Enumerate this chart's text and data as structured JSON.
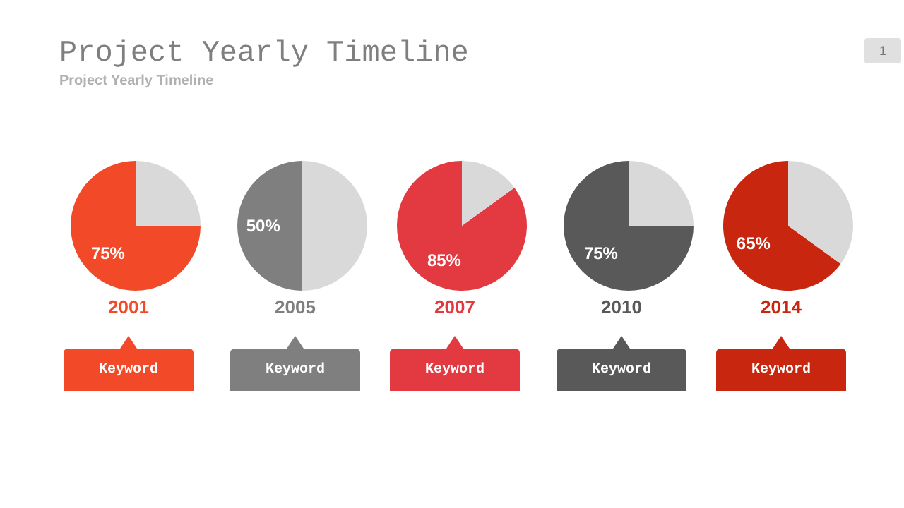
{
  "chart_data": [
    {
      "type": "other",
      "title": "Project Yearly Timeline",
      "subtitle": "Project Yearly Timeline",
      "annotations": [
        "1"
      ]
    },
    {
      "type": "pie",
      "title": "2001",
      "categories": [
        null,
        null
      ],
      "values": [
        75,
        25
      ],
      "colors": [
        "#f24a29",
        "#d9d9d9"
      ],
      "value_labels": [
        "75%",
        null
      ],
      "annotations": [
        "Keyword"
      ]
    },
    {
      "type": "pie",
      "title": "2005",
      "categories": [
        null,
        null
      ],
      "values": [
        50,
        50
      ],
      "colors": [
        "#7f7f7f",
        "#d9d9d9"
      ],
      "value_labels": [
        "50%",
        null
      ],
      "annotations": [
        "Keyword"
      ]
    },
    {
      "type": "pie",
      "title": "2007",
      "categories": [
        null,
        null
      ],
      "values": [
        85,
        15
      ],
      "colors": [
        "#e23a40",
        "#d9d9d9"
      ],
      "value_labels": [
        "85%",
        null
      ],
      "annotations": [
        "Keyword"
      ]
    },
    {
      "type": "pie",
      "title": "2010",
      "categories": [
        null,
        null
      ],
      "values": [
        75,
        25
      ],
      "colors": [
        "#595959",
        "#d9d9d9"
      ],
      "value_labels": [
        "75%",
        null
      ],
      "annotations": [
        "Keyword"
      ]
    },
    {
      "type": "pie",
      "title": "2014",
      "categories": [
        null,
        null
      ],
      "values": [
        65,
        35
      ],
      "colors": [
        "#c8260e",
        "#d9d9d9"
      ],
      "value_labels": [
        "65%",
        null
      ],
      "annotations": [
        "Keyword"
      ]
    }
  ]
}
